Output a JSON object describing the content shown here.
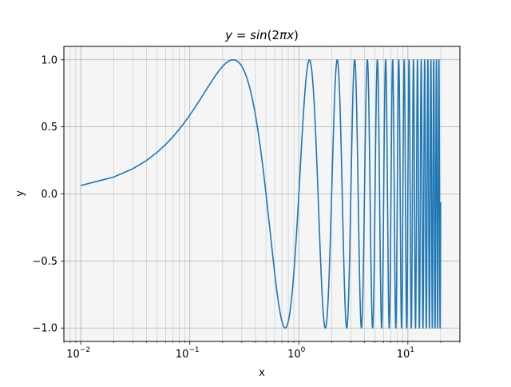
{
  "chart_data": {
    "type": "line",
    "title": "y = sin(2πx)",
    "title_display": {
      "prefix": "y",
      "equals": " = ",
      "func": "sin",
      "open": "(",
      "coef": "2",
      "pi": "π",
      "var": "x",
      "close": ")"
    },
    "xlabel": "x",
    "ylabel": "y",
    "x_scale": "log",
    "x_function": "y = sin(2*pi*x)",
    "xlim": [
      0.007,
      30
    ],
    "ylim": [
      -1.1,
      1.1
    ],
    "x_sampling": {
      "start": 0.01,
      "stop": 20.0,
      "step": 0.01
    },
    "x_major_ticks": [
      {
        "value": 0.01,
        "base": "10",
        "exp": "−2"
      },
      {
        "value": 0.1,
        "base": "10",
        "exp": "−1"
      },
      {
        "value": 1,
        "base": "10",
        "exp": "0"
      },
      {
        "value": 10,
        "base": "10",
        "exp": "1"
      }
    ],
    "y_ticks": [
      {
        "value": 1.0,
        "label": "1.0"
      },
      {
        "value": 0.5,
        "label": "0.5"
      },
      {
        "value": 0.0,
        "label": "0.0"
      },
      {
        "value": -0.5,
        "label": "−0.5"
      },
      {
        "value": -1.0,
        "label": "−1.0"
      }
    ],
    "grid": {
      "major": true,
      "minor_x": true
    },
    "legend": "none",
    "line_color": "#1f77b4",
    "axes_facecolor": "#f5f5f5",
    "grid_major_color": "#b0b0b0",
    "grid_minor_color": "#d0d0d0"
  }
}
